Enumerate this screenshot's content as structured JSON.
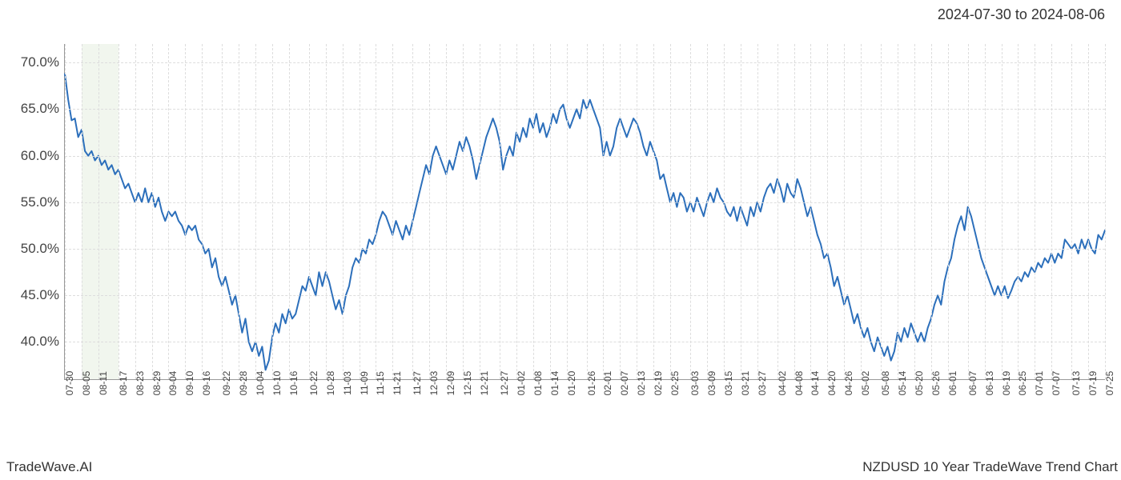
{
  "date_range": "2024-07-30 to 2024-08-06",
  "footer_left": "TradeWave.AI",
  "footer_right": "NZDUSD 10 Year TradeWave Trend Chart",
  "chart": {
    "type": "line",
    "line_color": "#2c6fbb",
    "line_width": 2,
    "background_color": "#ffffff",
    "grid_color": "#dddddd",
    "grid_style": "dashed",
    "axis_color": "#999999",
    "highlight_band_color": "#e8f0e2",
    "highlight_band_opacity": 0.6,
    "highlight_start_index": 1,
    "highlight_end_index": 3,
    "y_axis": {
      "min": 36,
      "max": 72,
      "ticks": [
        40.0,
        45.0,
        50.0,
        55.0,
        60.0,
        65.0,
        70.0
      ],
      "tick_labels": [
        "40.0%",
        "45.0%",
        "50.0%",
        "55.0%",
        "60.0%",
        "65.0%",
        "70.0%"
      ],
      "label_fontsize": 17
    },
    "x_axis": {
      "tick_labels": [
        "07-30",
        "08-05",
        "08-11",
        "08-17",
        "08-23",
        "08-29",
        "09-04",
        "09-10",
        "09-16",
        "09-22",
        "09-28",
        "10-04",
        "10-10",
        "10-16",
        "10-22",
        "10-28",
        "11-03",
        "11-09",
        "11-15",
        "11-21",
        "11-27",
        "12-03",
        "12-09",
        "12-15",
        "12-21",
        "12-27",
        "01-02",
        "01-08",
        "01-14",
        "01-20",
        "01-26",
        "02-01",
        "02-07",
        "02-13",
        "02-19",
        "02-25",
        "03-03",
        "03-09",
        "03-15",
        "03-21",
        "03-27",
        "04-02",
        "04-08",
        "04-14",
        "04-20",
        "04-26",
        "05-02",
        "05-08",
        "05-14",
        "05-20",
        "05-26",
        "06-01",
        "06-07",
        "06-13",
        "06-19",
        "06-25",
        "07-01",
        "07-07",
        "07-13",
        "07-19",
        "07-25"
      ],
      "label_fontsize": 12,
      "rotation": -90
    },
    "series": {
      "values": [
        68.8,
        66.0,
        63.8,
        64.0,
        62.0,
        62.8,
        60.5,
        60.0,
        60.5,
        59.5,
        60.0,
        59.0,
        59.5,
        58.5,
        59.0,
        58.0,
        58.5,
        57.5,
        56.5,
        57.0,
        56.0,
        55.0,
        56.0,
        55.0,
        56.5,
        55.0,
        56.0,
        54.5,
        55.5,
        54.0,
        53.0,
        54.0,
        53.5,
        54.0,
        53.0,
        52.5,
        51.5,
        52.5,
        52.0,
        52.5,
        51.0,
        50.5,
        49.5,
        50.0,
        48.0,
        49.0,
        47.0,
        46.0,
        47.0,
        45.5,
        44.0,
        45.0,
        43.0,
        41.0,
        42.5,
        40.0,
        39.0,
        40.0,
        38.5,
        39.5,
        37.0,
        38.0,
        40.5,
        42.0,
        41.0,
        43.0,
        42.0,
        43.5,
        42.5,
        43.0,
        44.5,
        46.0,
        45.5,
        47.0,
        46.0,
        45.0,
        47.5,
        46.0,
        47.5,
        46.5,
        45.0,
        43.5,
        44.5,
        43.0,
        45.0,
        46.0,
        48.0,
        49.0,
        48.5,
        50.0,
        49.5,
        51.0,
        50.5,
        51.5,
        53.0,
        54.0,
        53.5,
        52.5,
        51.5,
        53.0,
        52.0,
        51.0,
        52.5,
        51.5,
        53.0,
        54.5,
        56.0,
        57.5,
        59.0,
        58.0,
        60.0,
        61.0,
        60.0,
        59.0,
        58.0,
        59.5,
        58.5,
        60.0,
        61.5,
        60.5,
        62.0,
        61.0,
        59.5,
        57.5,
        59.0,
        60.5,
        62.0,
        63.0,
        64.0,
        63.0,
        61.5,
        58.5,
        60.0,
        61.0,
        60.0,
        62.5,
        61.5,
        63.0,
        62.0,
        64.0,
        63.0,
        64.5,
        62.5,
        63.5,
        62.0,
        63.0,
        64.5,
        63.5,
        65.0,
        65.5,
        64.0,
        63.0,
        64.0,
        65.0,
        64.0,
        66.0,
        65.0,
        66.0,
        65.0,
        64.0,
        63.0,
        60.0,
        61.5,
        60.0,
        61.0,
        63.0,
        64.0,
        63.0,
        62.0,
        63.0,
        64.0,
        63.5,
        62.5,
        61.0,
        60.0,
        61.5,
        60.5,
        59.5,
        57.5,
        58.0,
        56.5,
        55.0,
        56.0,
        54.5,
        56.0,
        55.5,
        54.0,
        55.0,
        54.0,
        55.5,
        54.5,
        53.5,
        55.0,
        56.0,
        55.0,
        56.5,
        55.5,
        55.0,
        54.0,
        53.5,
        54.5,
        53.0,
        54.5,
        53.5,
        52.5,
        54.5,
        53.5,
        55.0,
        54.0,
        55.5,
        56.5,
        57.0,
        56.0,
        57.5,
        56.5,
        55.0,
        57.0,
        56.0,
        55.5,
        57.5,
        56.5,
        55.0,
        53.5,
        54.5,
        53.0,
        51.5,
        50.5,
        49.0,
        49.5,
        48.0,
        46.0,
        47.0,
        45.5,
        44.0,
        45.0,
        43.5,
        42.0,
        43.0,
        41.5,
        40.5,
        41.5,
        40.0,
        39.0,
        40.5,
        39.5,
        38.5,
        39.5,
        38.0,
        39.0,
        41.0,
        40.0,
        41.5,
        40.5,
        42.0,
        41.0,
        40.0,
        41.0,
        40.0,
        41.5,
        42.5,
        44.0,
        45.0,
        44.0,
        46.5,
        48.0,
        49.0,
        51.0,
        52.5,
        53.5,
        52.0,
        54.5,
        53.5,
        52.0,
        50.5,
        49.0,
        48.0,
        47.0,
        46.0,
        45.0,
        46.0,
        45.0,
        46.0,
        44.7,
        45.5,
        46.5,
        47.0,
        46.5,
        47.5,
        47.0,
        48.0,
        47.5,
        48.5,
        48.0,
        49.0,
        48.5,
        49.5,
        48.5,
        49.5,
        49.0,
        51.0,
        50.5,
        50.0,
        50.5,
        49.5,
        51.0,
        50.0,
        51.0,
        50.0,
        49.5,
        51.5,
        51.0,
        52.0
      ]
    }
  }
}
